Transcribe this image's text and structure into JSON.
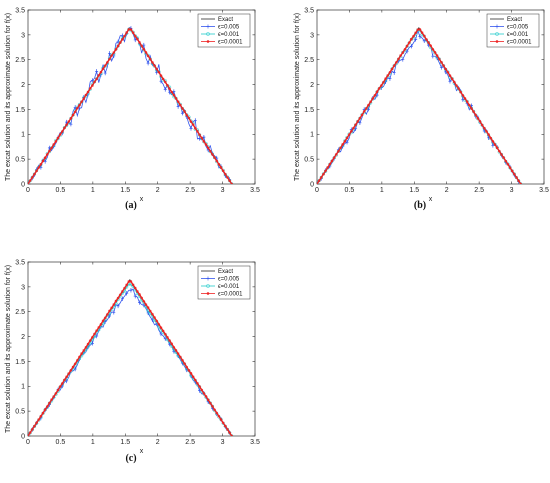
{
  "panels": [
    {
      "caption": "(a)",
      "chart_data": {
        "type": "line",
        "xlabel": "x",
        "ylabel": "The excat solution and its approximate solution for f(x)",
        "xlim": [
          0,
          3.5
        ],
        "ylim": [
          0,
          3.5
        ],
        "xticks": [
          "0",
          "0.5",
          "1",
          "1.5",
          "2",
          "2.5",
          "3",
          "3.5"
        ],
        "yticks": [
          "0",
          "0.5",
          "1",
          "1.5",
          "2",
          "2.5",
          "3",
          "3.5"
        ],
        "legend_position": "top-right",
        "series": [
          {
            "name": "Exact",
            "color": "#2a2a2a",
            "marker": "none",
            "noise": 0,
            "x": [
              0,
              1.5708,
              3.1416
            ],
            "y": [
              0,
              3.1416,
              0
            ]
          },
          {
            "name": "ϵ=0.005",
            "color": "#3355ee",
            "marker": "plus",
            "noise": 0.16,
            "shift": 0,
            "seed": 11,
            "x": [
              0,
              1.5708,
              3.1416
            ],
            "y": [
              0,
              3.1416,
              0
            ]
          },
          {
            "name": "ϵ=0.001",
            "color": "#22cccc",
            "marker": "circle",
            "noise": 0.03,
            "shift": 0,
            "seed": 23,
            "x": [
              0,
              1.5708,
              3.1416
            ],
            "y": [
              0,
              3.1416,
              0
            ]
          },
          {
            "name": "ϵ=0.0001",
            "color": "#ee2222",
            "marker": "star",
            "noise": 0.004,
            "shift": 0,
            "seed": 37,
            "x": [
              0,
              1.5708,
              3.1416
            ],
            "y": [
              0,
              3.1416,
              0
            ]
          }
        ]
      }
    },
    {
      "caption": "(b)",
      "chart_data": {
        "type": "line",
        "xlabel": "x",
        "ylabel": "The excat solution and its approximate solution for f(x)",
        "xlim": [
          0,
          3.5
        ],
        "ylim": [
          0,
          3.5
        ],
        "xticks": [
          "0",
          "0.5",
          "1",
          "1.5",
          "2",
          "2.5",
          "3",
          "3.5"
        ],
        "yticks": [
          "0",
          "0.5",
          "1",
          "1.5",
          "2",
          "2.5",
          "3",
          "3.5"
        ],
        "legend_position": "top-right",
        "series": [
          {
            "name": "Exact",
            "color": "#2a2a2a",
            "marker": "none",
            "noise": 0,
            "x": [
              0,
              1.5708,
              3.1416
            ],
            "y": [
              0,
              3.1416,
              0
            ]
          },
          {
            "name": "ϵ=0.005",
            "color": "#3355ee",
            "marker": "plus",
            "noise": 0.09,
            "shift": -0.07,
            "seed": 53,
            "x": [
              0,
              1.5708,
              3.1416
            ],
            "y": [
              0,
              3.1416,
              0
            ]
          },
          {
            "name": "ϵ=0.001",
            "color": "#22cccc",
            "marker": "circle",
            "noise": 0.02,
            "shift": -0.02,
            "seed": 61,
            "x": [
              0,
              1.5708,
              3.1416
            ],
            "y": [
              0,
              3.1416,
              0
            ]
          },
          {
            "name": "ϵ=0.0001",
            "color": "#ee2222",
            "marker": "star",
            "noise": 0.004,
            "shift": 0,
            "seed": 71,
            "x": [
              0,
              1.5708,
              3.1416
            ],
            "y": [
              0,
              3.1416,
              0
            ]
          }
        ]
      }
    },
    {
      "caption": "(c)",
      "chart_data": {
        "type": "line",
        "xlabel": "x",
        "ylabel": "The excat solution and its approximate solution for f(x)",
        "xlim": [
          0,
          3.5
        ],
        "ylim": [
          0,
          3.5
        ],
        "xticks": [
          "0",
          "0.5",
          "1",
          "1.5",
          "2",
          "2.5",
          "3",
          "3.5"
        ],
        "yticks": [
          "0",
          "0.5",
          "1",
          "1.5",
          "2",
          "2.5",
          "3",
          "3.5"
        ],
        "legend_position": "top-right",
        "series": [
          {
            "name": "Exact",
            "color": "#2a2a2a",
            "marker": "none",
            "noise": 0,
            "x": [
              0,
              1.5708,
              3.1416
            ],
            "y": [
              0,
              3.1416,
              0
            ]
          },
          {
            "name": "ϵ=0.005",
            "color": "#3355ee",
            "marker": "plus",
            "noise": 0.05,
            "shift": -0.13,
            "seed": 83,
            "x": [
              0,
              1.5708,
              3.1416
            ],
            "y": [
              0,
              3.1416,
              0
            ]
          },
          {
            "name": "ϵ=0.001",
            "color": "#22cccc",
            "marker": "circle",
            "noise": 0.02,
            "shift": -0.05,
            "seed": 97,
            "x": [
              0,
              1.5708,
              3.1416
            ],
            "y": [
              0,
              3.1416,
              0
            ]
          },
          {
            "name": "ϵ=0.0001",
            "color": "#ee2222",
            "marker": "star",
            "noise": 0.004,
            "shift": 0,
            "seed": 101,
            "x": [
              0,
              1.5708,
              3.1416
            ],
            "y": [
              0,
              3.1416,
              0
            ]
          }
        ]
      }
    }
  ]
}
